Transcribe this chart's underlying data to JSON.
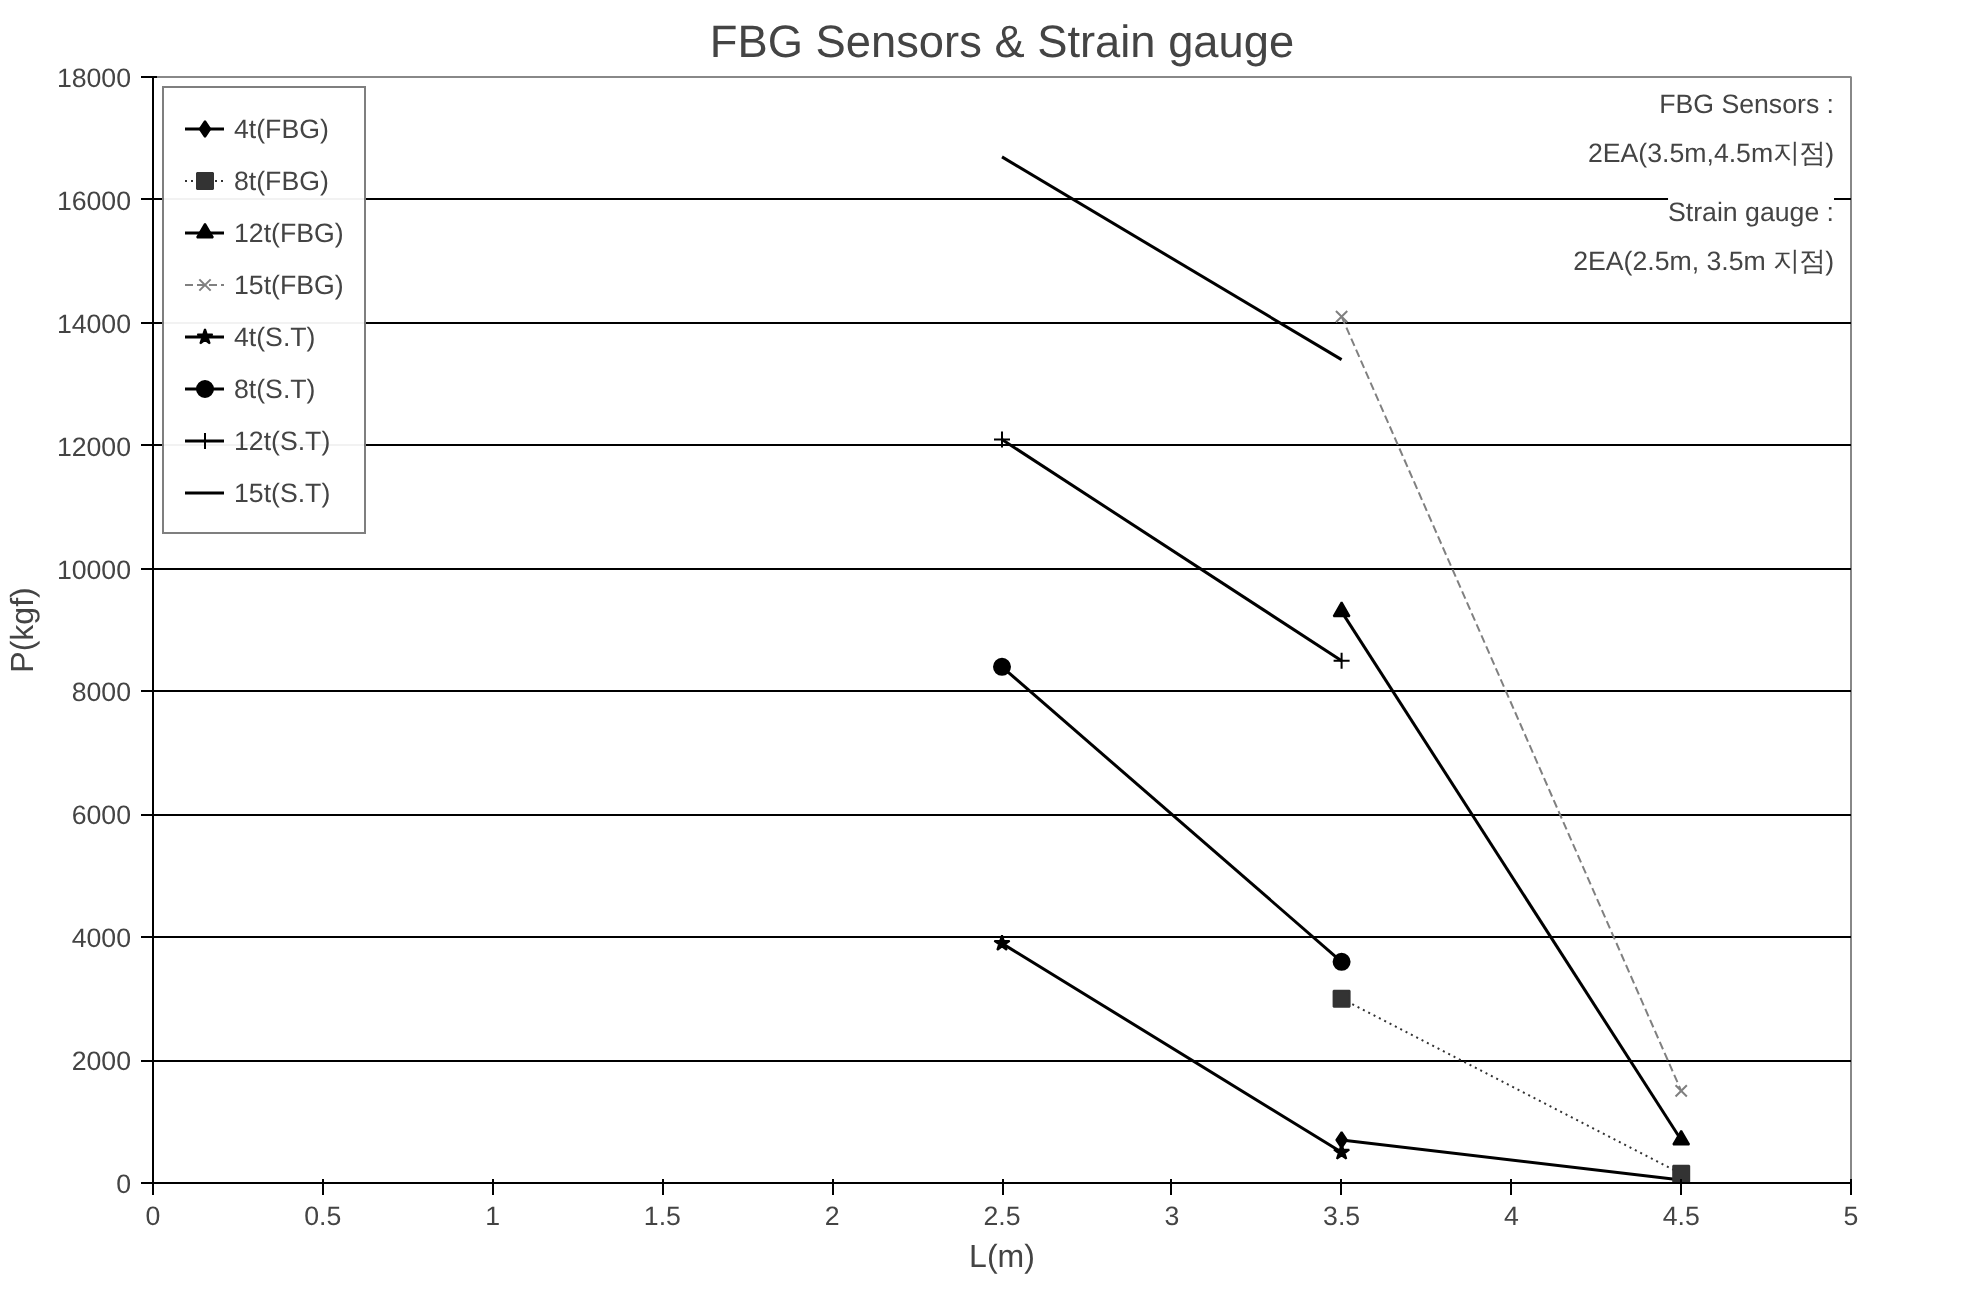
{
  "chart_data": {
    "type": "line",
    "title": "FBG Sensors & Strain gauge",
    "xlabel": "L(m)",
    "ylabel": "P(kgf)",
    "xlim": [
      0,
      5
    ],
    "xticks": [
      0,
      0.5,
      1,
      1.5,
      2,
      2.5,
      3,
      3.5,
      4,
      4.5,
      5
    ],
    "ylim": [
      0,
      18000
    ],
    "yticks": [
      0,
      2000,
      4000,
      6000,
      8000,
      10000,
      12000,
      14000,
      16000,
      18000
    ],
    "grid": "y",
    "legend": "top left",
    "annotations": [
      "FBG Sensors :",
      "2EA(3.5m,4.5m지점)",
      "Strain gauge :",
      "2EA(2.5m, 3.5m 지점)"
    ],
    "series": [
      {
        "name": "4t(FBG)",
        "color": "#000000",
        "marker": "diamond",
        "line_style": "solid",
        "x": [
          3.5,
          4.5
        ],
        "values": [
          700,
          50
        ]
      },
      {
        "name": "8t(FBG)",
        "color": "#333333",
        "marker": "square",
        "line_style": "dotted",
        "x": [
          3.5,
          4.5
        ],
        "values": [
          3000,
          150
        ]
      },
      {
        "name": "12t(FBG)",
        "color": "#000000",
        "marker": "triangle",
        "line_style": "solid",
        "x": [
          3.5,
          4.5
        ],
        "values": [
          9300,
          700
        ]
      },
      {
        "name": "15t(FBG)",
        "color": "#808080",
        "marker": "x",
        "line_style": "dashed",
        "x": [
          3.5,
          4.5
        ],
        "values": [
          14100,
          1500
        ]
      },
      {
        "name": "4t(S.T)",
        "color": "#000000",
        "marker": "star",
        "line_style": "solid",
        "x": [
          2.5,
          3.5
        ],
        "values": [
          3900,
          500
        ]
      },
      {
        "name": "8t(S.T)",
        "color": "#000000",
        "marker": "circle",
        "line_style": "solid",
        "x": [
          2.5,
          3.5
        ],
        "values": [
          8400,
          3600
        ]
      },
      {
        "name": "12t(S.T)",
        "color": "#000000",
        "marker": "cross",
        "line_style": "solid",
        "x": [
          2.5,
          3.5
        ],
        "values": [
          12100,
          8500
        ]
      },
      {
        "name": "15t(S.T)",
        "color": "#000000",
        "marker": "none",
        "line_style": "solid",
        "x": [
          2.5,
          3.5
        ],
        "values": [
          16700,
          13400
        ]
      }
    ]
  }
}
